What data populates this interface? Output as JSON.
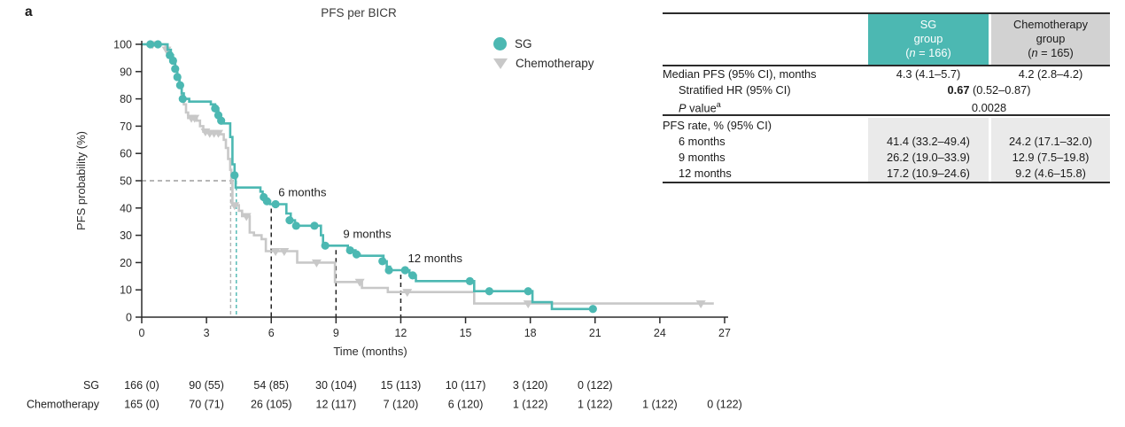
{
  "figure": {
    "panel_label": "a",
    "title": "PFS per BICR"
  },
  "legend": {
    "items": [
      {
        "label": "SG",
        "marker": "circle-icon",
        "color": "#4cb8b2"
      },
      {
        "label": "Chemotherapy",
        "marker": "triangle-down-icon",
        "color": "#c8c8c8"
      }
    ]
  },
  "colors": {
    "teal": "#4cb8b2",
    "gray_curve": "#c8c8c8",
    "header_gray": "#d2d2d2",
    "section_gray": "#eaeaea",
    "axis": "#2b2b2b"
  },
  "chart_data": {
    "type": "line",
    "subtype": "kaplan-meier-step",
    "title": "PFS per BICR",
    "xlabel": "Time (months)",
    "ylabel": "PFS probability (%)",
    "xlim": [
      0,
      27
    ],
    "ylim": [
      0,
      100
    ],
    "xticks": [
      0,
      3,
      6,
      9,
      12,
      15,
      18,
      21,
      24,
      27
    ],
    "yticks": [
      0,
      10,
      20,
      30,
      40,
      50,
      60,
      70,
      80,
      90,
      100
    ],
    "grid": false,
    "legend_position": "top-right",
    "series": [
      {
        "name": "Chemotherapy",
        "color": "#c8c8c8",
        "marker": "triangle-down",
        "steps": [
          [
            0,
            100
          ],
          [
            1.1,
            98
          ],
          [
            1.25,
            96
          ],
          [
            1.4,
            93
          ],
          [
            1.55,
            90
          ],
          [
            1.65,
            87
          ],
          [
            1.75,
            84
          ],
          [
            1.85,
            81
          ],
          [
            1.95,
            78
          ],
          [
            2.05,
            75
          ],
          [
            2.15,
            73
          ],
          [
            2.55,
            72
          ],
          [
            2.7,
            70
          ],
          [
            2.85,
            68
          ],
          [
            3.0,
            67.5
          ],
          [
            3.65,
            67
          ],
          [
            3.8,
            65
          ],
          [
            3.9,
            62
          ],
          [
            4.0,
            58
          ],
          [
            4.1,
            54
          ],
          [
            4.15,
            50
          ],
          [
            4.2,
            41
          ],
          [
            4.5,
            39
          ],
          [
            4.65,
            37
          ],
          [
            5.0,
            31
          ],
          [
            5.2,
            30
          ],
          [
            5.55,
            28.6
          ],
          [
            5.75,
            24.2
          ],
          [
            7.2,
            20
          ],
          [
            8.95,
            12.9
          ],
          [
            10.2,
            10.7
          ],
          [
            11.4,
            9.2
          ],
          [
            15.4,
            5
          ],
          [
            26.5,
            5
          ]
        ],
        "censors": [
          [
            0.5,
            100
          ],
          [
            1.15,
            98
          ],
          [
            2.3,
            73
          ],
          [
            2.45,
            73
          ],
          [
            2.95,
            68
          ],
          [
            3.15,
            67.5
          ],
          [
            3.35,
            67.5
          ],
          [
            3.55,
            67.5
          ],
          [
            4.3,
            41
          ],
          [
            4.85,
            37
          ],
          [
            6.2,
            24.2
          ],
          [
            6.6,
            24.2
          ],
          [
            8.1,
            20
          ],
          [
            10.1,
            12.9
          ],
          [
            12.3,
            9.2
          ],
          [
            17.9,
            5
          ],
          [
            25.9,
            5
          ]
        ]
      },
      {
        "name": "SG",
        "color": "#4cb8b2",
        "marker": "circle",
        "steps": [
          [
            0,
            100
          ],
          [
            1.2,
            98
          ],
          [
            1.35,
            96
          ],
          [
            1.45,
            94
          ],
          [
            1.55,
            91
          ],
          [
            1.65,
            88
          ],
          [
            1.75,
            85
          ],
          [
            1.85,
            82
          ],
          [
            1.95,
            80
          ],
          [
            2.2,
            79
          ],
          [
            3.2,
            78
          ],
          [
            3.4,
            76.5
          ],
          [
            3.55,
            74
          ],
          [
            3.65,
            72
          ],
          [
            3.75,
            71
          ],
          [
            4.1,
            66
          ],
          [
            4.2,
            56
          ],
          [
            4.3,
            52
          ],
          [
            4.35,
            47.5
          ],
          [
            5.5,
            46
          ],
          [
            5.6,
            44
          ],
          [
            5.75,
            42.5
          ],
          [
            5.95,
            41.4
          ],
          [
            6.7,
            38
          ],
          [
            6.9,
            35.5
          ],
          [
            7.1,
            33.5
          ],
          [
            8.3,
            30
          ],
          [
            8.4,
            26.2
          ],
          [
            9.55,
            24.5
          ],
          [
            9.9,
            23
          ],
          [
            10.1,
            22.5
          ],
          [
            11.2,
            20.5
          ],
          [
            11.35,
            18.5
          ],
          [
            11.5,
            17.2
          ],
          [
            12.4,
            15.3
          ],
          [
            12.7,
            13.2
          ],
          [
            15.4,
            9.5
          ],
          [
            18.1,
            5.5
          ],
          [
            19,
            3
          ],
          [
            21,
            3
          ]
        ],
        "censors": [
          [
            0.4,
            100
          ],
          [
            0.75,
            100
          ],
          [
            1.3,
            96
          ],
          [
            1.45,
            94
          ],
          [
            1.55,
            91
          ],
          [
            1.65,
            88
          ],
          [
            1.78,
            85
          ],
          [
            1.9,
            80
          ],
          [
            3.4,
            76.5
          ],
          [
            3.55,
            74
          ],
          [
            3.68,
            72
          ],
          [
            4.3,
            52
          ],
          [
            5.65,
            44
          ],
          [
            5.8,
            42.5
          ],
          [
            6.2,
            41.4
          ],
          [
            6.85,
            35.5
          ],
          [
            7.15,
            33.5
          ],
          [
            8.0,
            33.5
          ],
          [
            8.5,
            26.2
          ],
          [
            9.65,
            24.5
          ],
          [
            9.95,
            23
          ],
          [
            11.15,
            20.5
          ],
          [
            11.45,
            17.2
          ],
          [
            12.2,
            17.2
          ],
          [
            12.55,
            15.3
          ],
          [
            15.2,
            13.2
          ],
          [
            16.1,
            9.5
          ],
          [
            17.9,
            9.5
          ],
          [
            20.9,
            3
          ]
        ]
      }
    ],
    "median_reference": {
      "pct": 50,
      "sg_median_months": 4.3,
      "chemo_median_months": 4.2
    },
    "annotations": [
      {
        "label": "6 months",
        "month": 6,
        "pct": 41.4
      },
      {
        "label": "9 months",
        "month": 9,
        "pct": 26.2
      },
      {
        "label": "12 months",
        "month": 12,
        "pct": 17.2
      }
    ],
    "risk_table": {
      "rows": [
        {
          "label": "SG",
          "values": [
            "166 (0)",
            "90 (55)",
            "54 (85)",
            "30 (104)",
            "15 (113)",
            "10 (117)",
            "3 (120)",
            "0 (122)"
          ]
        },
        {
          "label": "Chemotherapy",
          "values": [
            "165 (0)",
            "70 (71)",
            "26 (105)",
            "12 (117)",
            "7 (120)",
            "6 (120)",
            "1 (122)",
            "1 (122)",
            "1 (122)",
            "0 (122)"
          ]
        }
      ]
    }
  },
  "summary_table": {
    "col_sg": {
      "name": "SG",
      "sub": "group",
      "n_open": "(",
      "n_char": "n",
      "n_rest": " = 166)"
    },
    "col_chemo": {
      "name": "Chemotherapy",
      "sub": "group",
      "n_open": "(",
      "n_char": "n",
      "n_rest": " = 165)"
    },
    "median_row": {
      "label": "Median PFS (95% CI), months",
      "sg": "4.3 (4.1–5.7)",
      "chemo": "4.2 (2.8–4.2)"
    },
    "hr_row": {
      "label": "Stratified HR (95% CI)",
      "bold": "0.67",
      "rest": " (0.52–0.87)"
    },
    "p_row": {
      "italic": "P",
      "rest": " value",
      "sup": "a",
      "value": "0.0028"
    },
    "rate_section": {
      "label": "PFS rate, % (95% CI)",
      "rows": [
        {
          "label": "6 months",
          "sg": "41.4 (33.2–49.4)",
          "chemo": "24.2 (17.1–32.0)"
        },
        {
          "label": "9 months",
          "sg": "26.2 (19.0–33.9)",
          "chemo": "12.9 (7.5–19.8)"
        },
        {
          "label": "12 months",
          "sg": "17.2 (10.9–24.6)",
          "chemo": "9.2 (4.6–15.8)"
        }
      ]
    }
  }
}
